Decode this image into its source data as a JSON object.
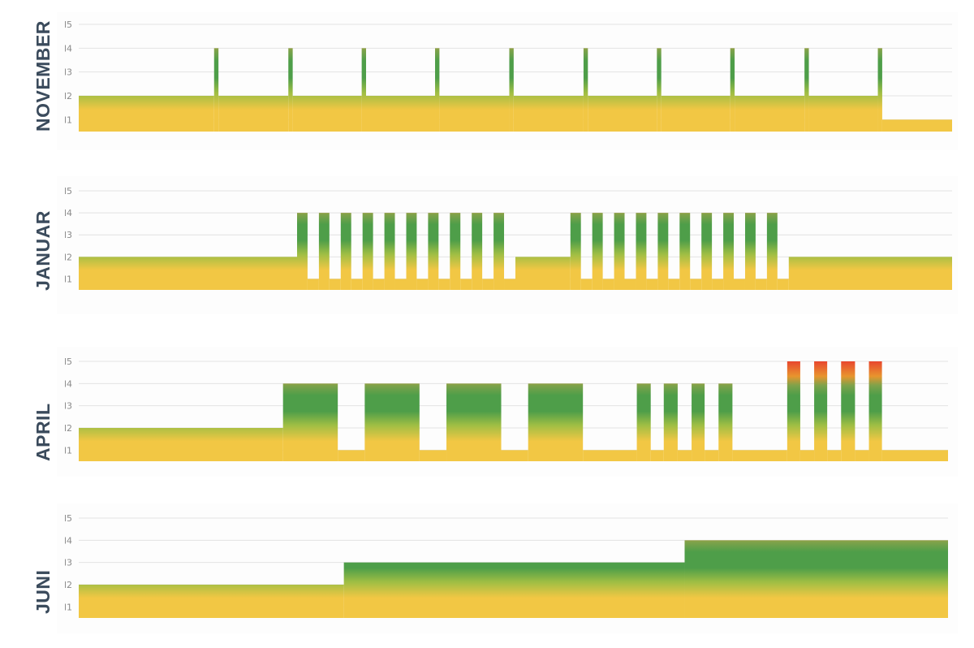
{
  "colors": {
    "yellow": "#f2c744",
    "green": "#4e9e49",
    "orange": "#e8952e",
    "red": "#e8462e",
    "grid": "#e2e2e2",
    "label": "#3b4b5c"
  },
  "y_tick_labels": [
    "l1",
    "l2",
    "l3",
    "l4",
    "l5"
  ],
  "chart_data": [
    {
      "type": "area",
      "title": "NOVEMBER",
      "x_range": [
        0,
        1000
      ],
      "ylim": [
        0.5,
        5
      ],
      "grid": true,
      "steps": [
        [
          0,
          2
        ],
        [
          155,
          4
        ],
        [
          160,
          2
        ],
        [
          240,
          4
        ],
        [
          245,
          2
        ],
        [
          324,
          4
        ],
        [
          329,
          2
        ],
        [
          408,
          4
        ],
        [
          413,
          2
        ],
        [
          493,
          4
        ],
        [
          498,
          2
        ],
        [
          578,
          4
        ],
        [
          583,
          2
        ],
        [
          662,
          4
        ],
        [
          667,
          2
        ],
        [
          746,
          4
        ],
        [
          751,
          2
        ],
        [
          831,
          4
        ],
        [
          836,
          2
        ],
        [
          915,
          4
        ],
        [
          920,
          1
        ],
        [
          1000,
          1
        ]
      ]
    },
    {
      "type": "area",
      "title": "JANUAR",
      "x_range": [
        0,
        1000
      ],
      "ylim": [
        0.5,
        5
      ],
      "grid": true,
      "steps": [
        [
          0,
          2
        ],
        [
          250,
          4
        ],
        [
          262,
          1
        ],
        [
          275,
          4
        ],
        [
          287,
          1
        ],
        [
          300,
          4
        ],
        [
          312,
          1
        ],
        [
          325,
          4
        ],
        [
          337,
          1
        ],
        [
          350,
          4
        ],
        [
          362,
          1
        ],
        [
          375,
          4
        ],
        [
          387,
          1
        ],
        [
          400,
          4
        ],
        [
          412,
          1
        ],
        [
          425,
          4
        ],
        [
          437,
          1
        ],
        [
          450,
          4
        ],
        [
          462,
          1
        ],
        [
          475,
          4
        ],
        [
          487,
          1
        ],
        [
          500,
          2
        ],
        [
          563,
          4
        ],
        [
          575,
          1
        ],
        [
          588,
          4
        ],
        [
          600,
          1
        ],
        [
          613,
          4
        ],
        [
          625,
          1
        ],
        [
          638,
          4
        ],
        [
          650,
          1
        ],
        [
          663,
          4
        ],
        [
          675,
          1
        ],
        [
          688,
          4
        ],
        [
          700,
          1
        ],
        [
          713,
          4
        ],
        [
          725,
          1
        ],
        [
          738,
          4
        ],
        [
          750,
          1
        ],
        [
          763,
          4
        ],
        [
          775,
          1
        ],
        [
          788,
          4
        ],
        [
          800,
          1
        ],
        [
          813,
          2
        ],
        [
          1000,
          2
        ]
      ]
    },
    {
      "type": "area",
      "title": "APRIL",
      "x_range": [
        0,
        1000
      ],
      "ylim": [
        0.5,
        5
      ],
      "grid": true,
      "steps": [
        [
          0,
          2
        ],
        [
          235,
          4
        ],
        [
          298,
          1
        ],
        [
          329,
          4
        ],
        [
          392,
          1
        ],
        [
          423,
          4
        ],
        [
          486,
          1
        ],
        [
          517,
          4
        ],
        [
          580,
          1
        ],
        [
          642,
          4
        ],
        [
          658,
          1
        ],
        [
          673,
          4
        ],
        [
          689,
          1
        ],
        [
          705,
          4
        ],
        [
          720,
          1
        ],
        [
          736,
          4
        ],
        [
          752,
          1
        ],
        [
          815,
          5
        ],
        [
          830,
          1
        ],
        [
          846,
          5
        ],
        [
          861,
          1
        ],
        [
          877,
          5
        ],
        [
          893,
          1
        ],
        [
          909,
          5
        ],
        [
          924,
          1
        ],
        [
          1000,
          1
        ]
      ]
    },
    {
      "type": "area",
      "title": "JUNI",
      "x_range": [
        0,
        1000
      ],
      "ylim": [
        0.5,
        5
      ],
      "grid": true,
      "steps": [
        [
          0,
          2
        ],
        [
          305,
          3
        ],
        [
          697,
          4
        ],
        [
          1000,
          4
        ]
      ]
    }
  ]
}
